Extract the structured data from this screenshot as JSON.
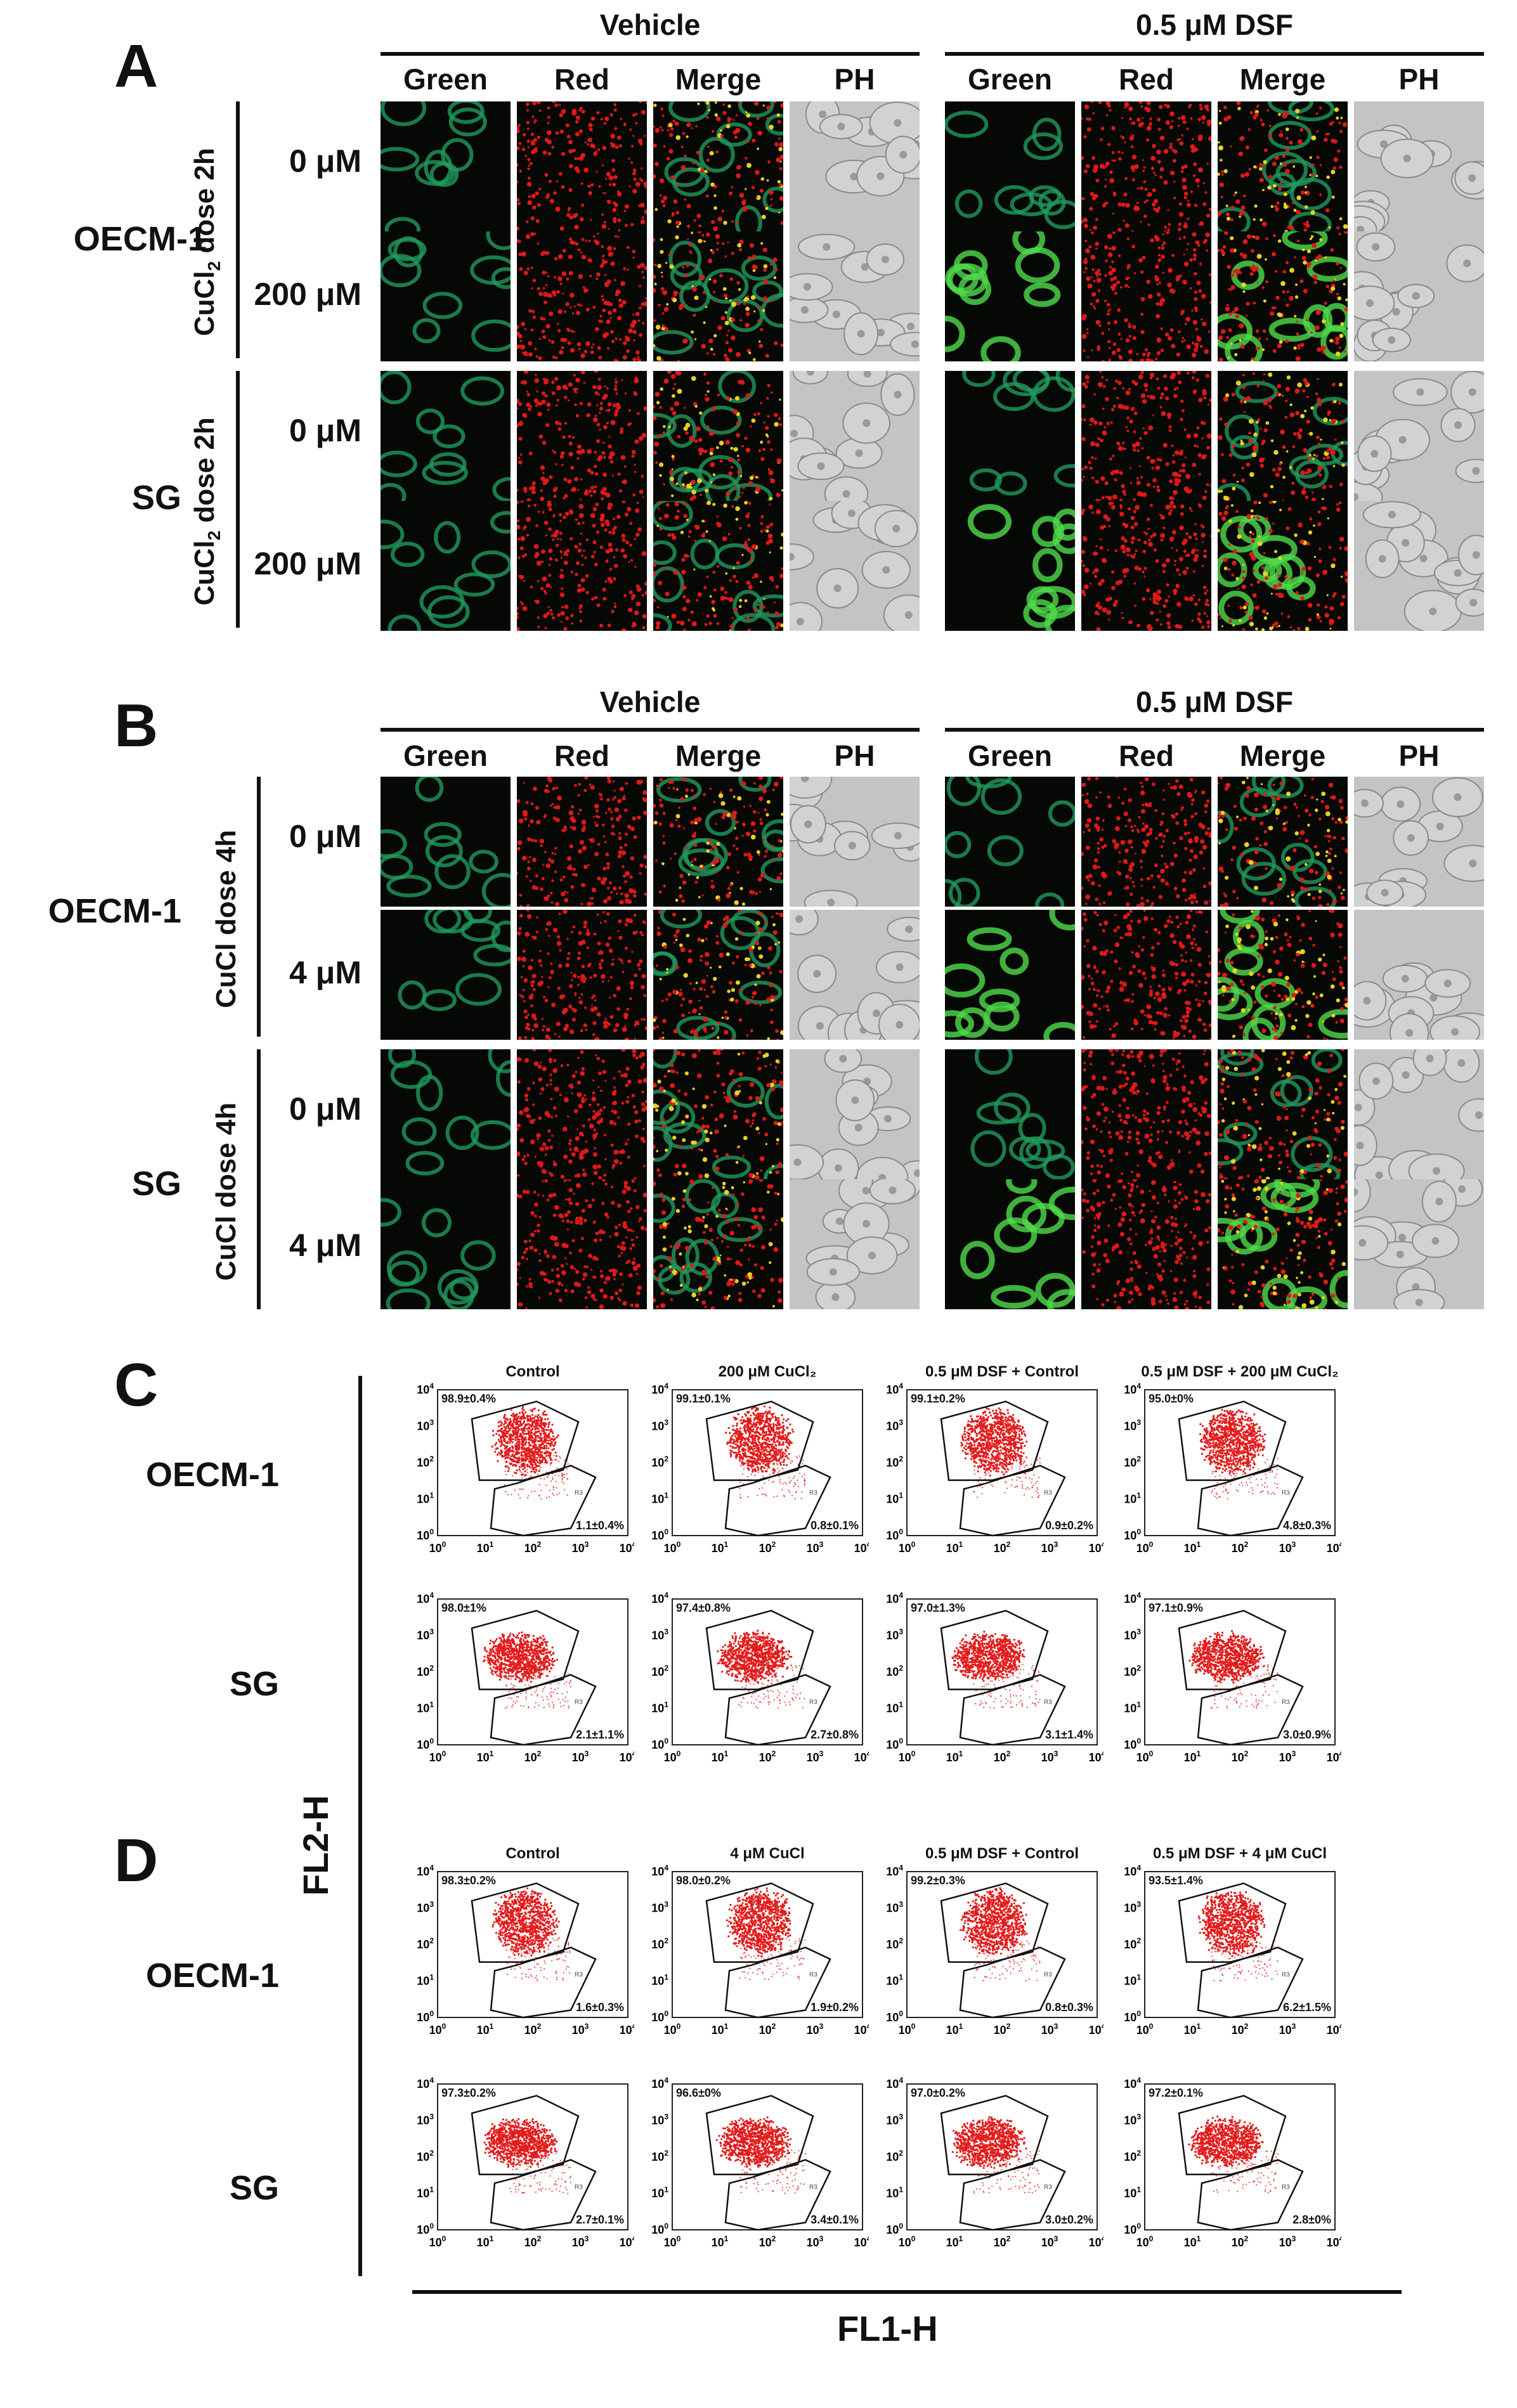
{
  "panel_a": {
    "letter": "A",
    "groups": [
      "Vehicle",
      "0.5 μM DSF"
    ],
    "columns": [
      "Green",
      "Red",
      "Merge",
      "PH"
    ],
    "cell_lines": [
      "OECM-1",
      "SG"
    ],
    "treatment_label_base": "CuCl",
    "treatment_label_sub": "2",
    "treatment_label_rest": " dose 2h",
    "doses": [
      "0 μM",
      "200 μM"
    ]
  },
  "panel_b": {
    "letter": "B",
    "groups": [
      "Vehicle",
      "0.5 μM DSF"
    ],
    "columns": [
      "Green",
      "Red",
      "Merge",
      "PH"
    ],
    "cell_lines": [
      "OECM-1",
      "SG"
    ],
    "treatment_label": "CuCl dose 4h",
    "doses": [
      "0 μM",
      "4 μM"
    ]
  },
  "panel_c": {
    "letter": "C",
    "cell_lines": [
      "OECM-1",
      "SG"
    ],
    "titles": [
      "Control",
      "200 μM CuCl₂",
      "0.5 μM DSF + Control",
      "0.5 μM DSF + 200 μM CuCl₂"
    ],
    "values_top": [
      [
        "98.9±0.4%",
        "99.1±0.1%",
        "99.1±0.2%",
        "95.0±0%"
      ],
      [
        "98.0±1%",
        "97.4±0.8%",
        "97.0±1.3%",
        "97.1±0.9%"
      ]
    ],
    "values_bottom": [
      [
        "1.1±0.4%",
        "0.8±0.1%",
        "0.9±0.2%",
        "4.8±0.3%"
      ],
      [
        "2.1±1.1%",
        "2.7±0.8%",
        "3.1±1.4%",
        "3.0±0.9%"
      ]
    ]
  },
  "panel_d": {
    "letter": "D",
    "cell_lines": [
      "OECM-1",
      "SG"
    ],
    "titles": [
      "Control",
      "4 μM CuCl",
      "0.5 μM DSF + Control",
      "0.5 μM DSF + 4 μM CuCl"
    ],
    "values_top": [
      [
        "98.3±0.2%",
        "98.0±0.2%",
        "99.2±0.3%",
        "93.5±1.4%"
      ],
      [
        "97.3±0.2%",
        "96.6±0%",
        "97.0±0.2%",
        "97.2±0.1%"
      ]
    ],
    "values_bottom": [
      [
        "1.6±0.3%",
        "1.9±0.2%",
        "0.8±0.3%",
        "6.2±1.5%"
      ],
      [
        "2.7±0.1%",
        "3.4±0.1%",
        "3.0±0.2%",
        "2.8±0%"
      ]
    ]
  },
  "flow_axes": {
    "y_label": "FL2-H",
    "x_label": "FL1-H",
    "tick_base": "10",
    "tick_exponents": [
      "0",
      "1",
      "2",
      "3",
      "4"
    ],
    "gate_label": "R3"
  },
  "colors": {
    "green_channel": "#1e8f55",
    "red_channel": "#e01818",
    "phase": "#bdbdbd",
    "flow_dots": "#e31b1b"
  }
}
